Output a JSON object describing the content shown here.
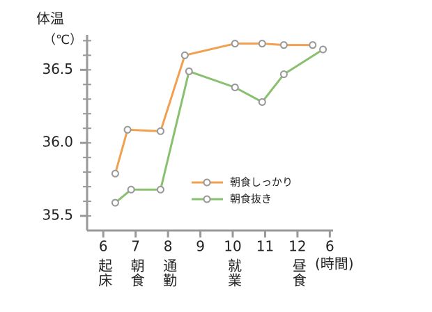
{
  "chart_data": {
    "type": "line",
    "y_label": "体温",
    "y_unit": "（℃）",
    "x_unit": "(時間)",
    "ylim": [
      35.4,
      36.74
    ],
    "yticks": [
      {
        "value": 35.5,
        "label": "35.5"
      },
      {
        "value": 36.0,
        "label": "36.0"
      },
      {
        "value": 36.5,
        "label": "36.5"
      }
    ],
    "yminor": [
      35.5,
      35.6,
      35.7,
      35.8,
      35.9,
      36.0,
      36.1,
      36.2,
      36.3,
      36.4,
      36.5,
      36.6,
      36.7
    ],
    "xlim": [
      5.5,
      13.1
    ],
    "xticks": [
      6,
      7,
      8,
      9,
      10,
      11,
      12,
      {
        "value": 13,
        "label": "6"
      }
    ],
    "xtick_notes": [
      "起床",
      "朝食",
      "通勤",
      null,
      "就業",
      null,
      "昼食",
      null
    ],
    "series": [
      {
        "name": "朝食しっかり",
        "color": "#f0a050",
        "x": [
          6.37,
          6.75,
          7.77,
          8.52,
          10.07,
          10.91,
          11.58,
          12.47
        ],
        "values": [
          35.79,
          36.09,
          36.08,
          36.6,
          36.68,
          36.68,
          36.67,
          36.67
        ]
      },
      {
        "name": "朝食抜き",
        "color": "#88c070",
        "x": [
          6.37,
          6.86,
          7.77,
          8.65,
          10.07,
          10.91,
          11.58,
          12.79
        ],
        "values": [
          35.59,
          35.68,
          35.68,
          36.49,
          36.38,
          36.28,
          36.47,
          36.64
        ]
      }
    ]
  }
}
